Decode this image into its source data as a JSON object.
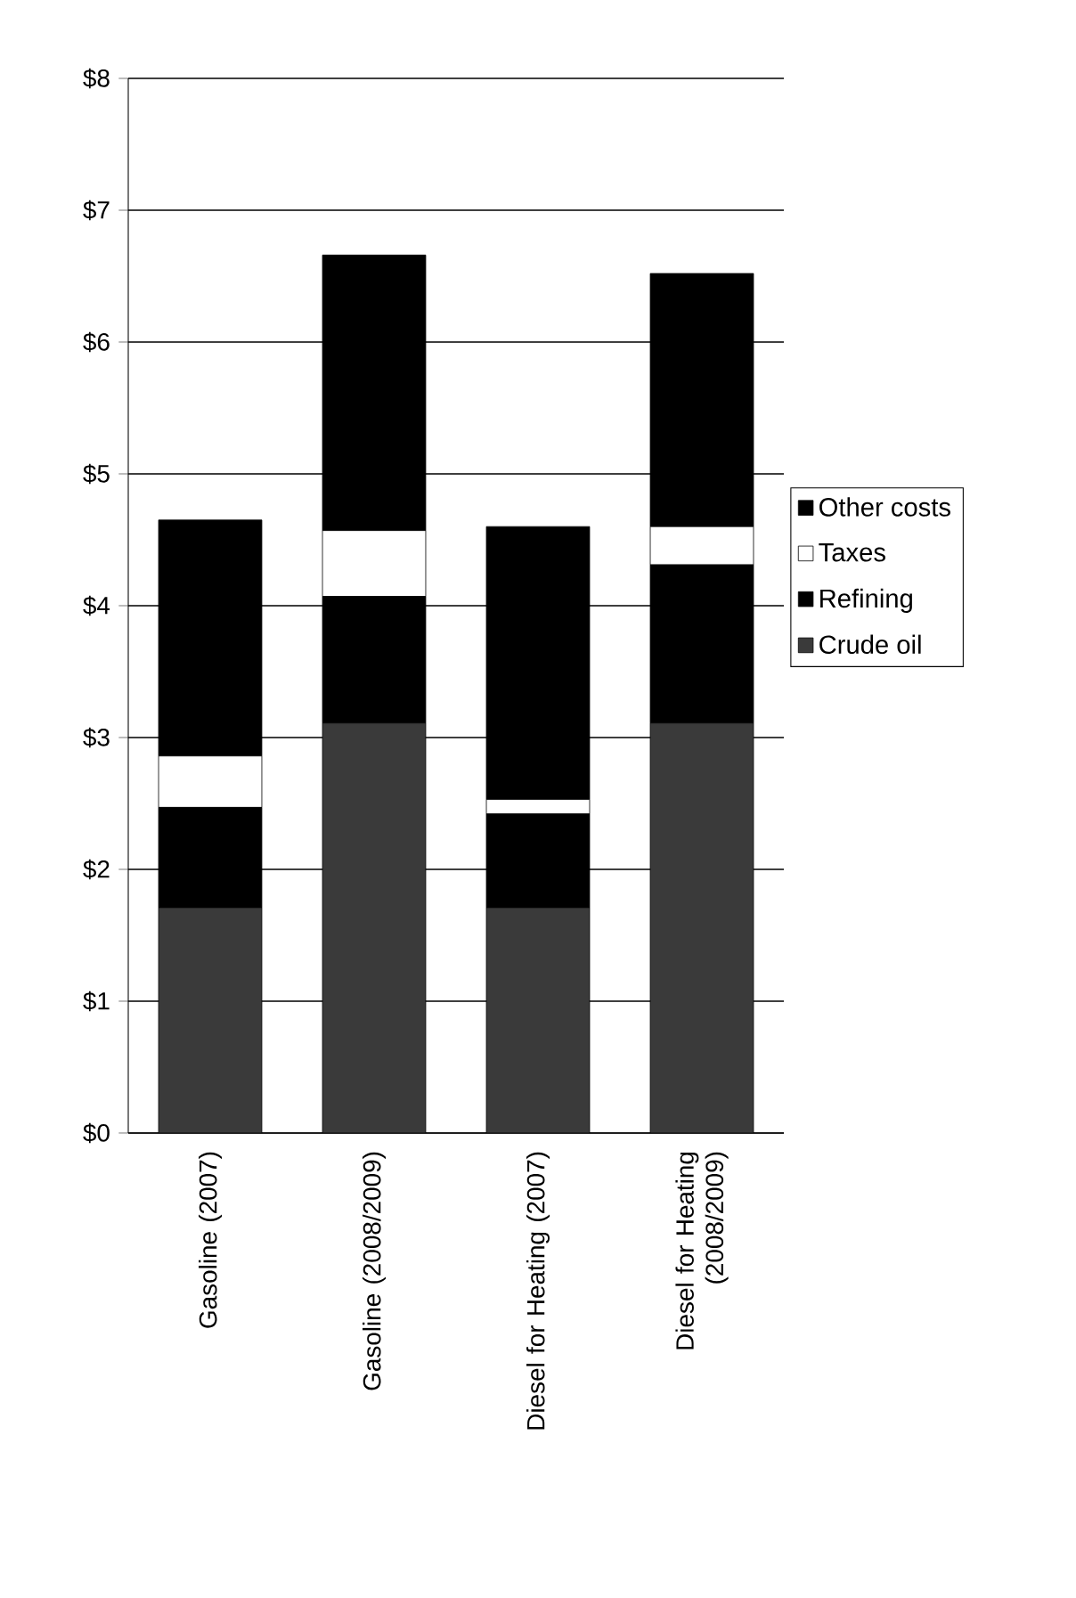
{
  "chart_data": {
    "type": "bar",
    "stacked": true,
    "categories": [
      "Gasoline (2007)",
      "Gasoline (2008/2009)",
      "Diesel for Heating (2007)",
      "Diesel for Heating (2008/2009)"
    ],
    "series": [
      {
        "name": "Crude oil",
        "color": "#3a3a3a",
        "values": [
          1.71,
          3.11,
          1.71,
          3.11
        ]
      },
      {
        "name": "Refining",
        "color": "#000000",
        "values": [
          0.76,
          0.96,
          0.71,
          1.2
        ]
      },
      {
        "name": "Taxes",
        "color": "#ffffff",
        "values": [
          0.39,
          0.5,
          0.11,
          0.29
        ]
      },
      {
        "name": "Other costs",
        "color": "#000000",
        "values": [
          1.79,
          2.09,
          2.07,
          1.92
        ]
      }
    ],
    "ylim": [
      0,
      8
    ],
    "yticks": [
      {
        "value": 0,
        "label": "$0"
      },
      {
        "value": 1,
        "label": "$1"
      },
      {
        "value": 2,
        "label": "$2"
      },
      {
        "value": 3,
        "label": "$3"
      },
      {
        "value": 4,
        "label": "$4"
      },
      {
        "value": 5,
        "label": "$5"
      },
      {
        "value": 6,
        "label": "$6"
      },
      {
        "value": 7,
        "label": "$7"
      },
      {
        "value": 8,
        "label": "$8"
      }
    ],
    "grid": "y",
    "legend": "right"
  }
}
